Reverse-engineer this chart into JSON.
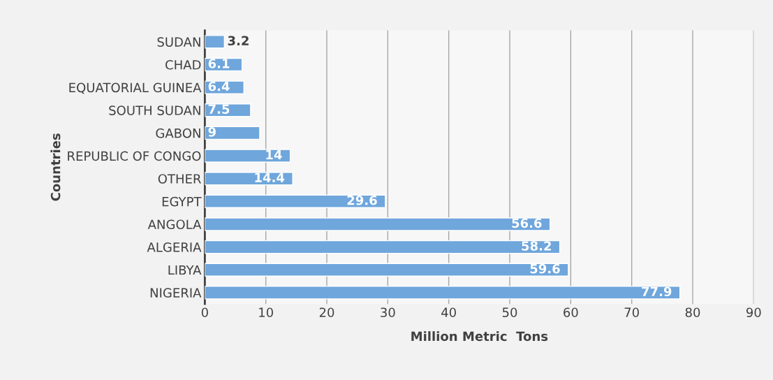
{
  "chart_data": {
    "type": "bar",
    "orientation": "horizontal",
    "xlabel": "Million Metric  Tons",
    "ylabel": "Countries",
    "categories": [
      "SUDAN",
      "CHAD",
      "EQUATORIAL GUINEA",
      "SOUTH SUDAN",
      "GABON",
      "REPUBLIC OF CONGO",
      "OTHER",
      "EGYPT",
      "ANGOLA",
      "ALGERIA",
      "LIBYA",
      "NIGERIA"
    ],
    "values": [
      3.2,
      6.1,
      6.4,
      7.5,
      9,
      14,
      14.4,
      29.6,
      56.6,
      58.2,
      59.6,
      77.9
    ],
    "color": "#6fa6dc",
    "xlim": [
      0,
      90
    ],
    "xticks": [
      0,
      10,
      20,
      30,
      40,
      50,
      60,
      70,
      80,
      90
    ],
    "grid": "x",
    "data_labels": true
  }
}
